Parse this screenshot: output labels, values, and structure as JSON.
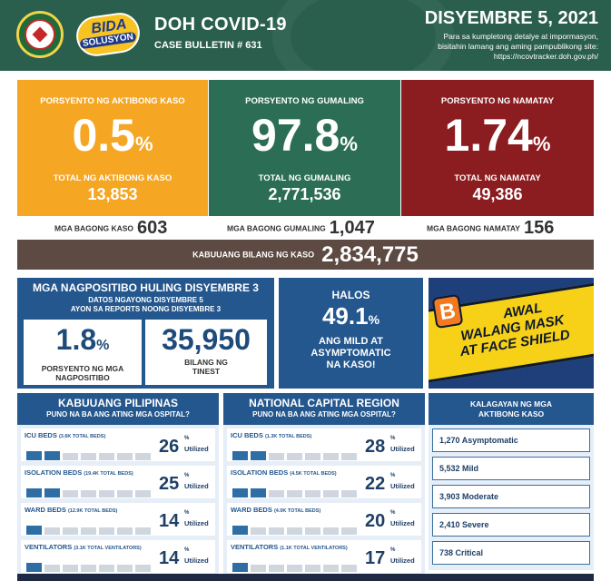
{
  "header": {
    "title": "DOH COVID-19",
    "bulletin": "CASE BULLETIN # 631",
    "date": "DISYEMBRE 5, 2021",
    "note_line1": "Para sa kumpletong detalye at impormasyon,",
    "note_line2": "bisitahin lamang ang aming pampublikong site:",
    "note_line3": "https://ncovtracker.doh.gov.ph/",
    "logo_text_1": "BIDA",
    "logo_text_2": "SOLUSYON"
  },
  "stats": {
    "active": {
      "label": "PORSYENTO NG AKTIBONG KASO",
      "pct": "0.5",
      "pct_unit": "%",
      "total_label": "TOTAL NG AKTIBONG KASO",
      "total": "13,853",
      "color": "#f5a623"
    },
    "recovered": {
      "label": "PORSYENTO NG GUMALING",
      "pct": "97.8",
      "pct_unit": "%",
      "total_label": "TOTAL NG GUMALING",
      "total": "2,771,536",
      "color": "#2b6e55"
    },
    "deaths": {
      "label": "PORSYENTO NG NAMATAY",
      "pct": "1.74",
      "pct_unit": "%",
      "total_label": "TOTAL NG NAMATAY",
      "total": "49,386",
      "color": "#8b1c1f"
    }
  },
  "new_counts": {
    "cases": {
      "label": "MGA BAGONG KASO",
      "value": "603"
    },
    "recovered": {
      "label": "MGA BAGONG GUMALING",
      "value": "1,047"
    },
    "deaths": {
      "label": "MGA BAGONG NAMATAY",
      "value": "156"
    }
  },
  "total_cases": {
    "label": "KABUUANG BILANG NG KASO",
    "value": "2,834,775"
  },
  "positivity": {
    "title": "MGA NAGPOSITIBO HULING DISYEMBRE 3",
    "sub1": "DATOS NGAYONG DISYEMBRE 5",
    "sub2": "AYON SA REPORTS NOONG DISYEMBRE 3",
    "rate": "1.8",
    "rate_unit": "%",
    "rate_label1": "PORSYENTO NG MGA",
    "rate_label2": "NAGPOSITIBO",
    "tested": "35,950",
    "tested_label1": "BILANG NG",
    "tested_label2": "TINEST"
  },
  "mild": {
    "line1": "HALOS",
    "value": "49.1",
    "unit": "%",
    "line2": "ANG MILD AT",
    "line3": "ASYMPTOMATIC",
    "line4": "NA KASO!"
  },
  "mask_banner": {
    "letter": "B",
    "line1": "AWAL",
    "line2": "WALANG MASK",
    "line3": "AT FACE SHIELD"
  },
  "hospitals": {
    "ph": {
      "title": "KABUUANG PILIPINAS",
      "subtitle": "PUNO NA BA ANG ATING MGA OSPITAL?",
      "rows": [
        {
          "label": "ICU BEDS",
          "detail": "(3.6K TOTAL BEDS)",
          "value": "26",
          "utilized": 0.26
        },
        {
          "label": "ISOLATION BEDS",
          "detail": "(19.4K TOTAL BEDS)",
          "value": "25",
          "utilized": 0.25
        },
        {
          "label": "WARD BEDS",
          "detail": "(12.9K TOTAL BEDS)",
          "value": "14",
          "utilized": 0.14
        },
        {
          "label": "VENTILATORS",
          "detail": "(3.1K TOTAL VENTILATORS)",
          "value": "14",
          "utilized": 0.14
        }
      ]
    },
    "ncr": {
      "title": "NATIONAL CAPITAL REGION",
      "subtitle": "PUNO NA BA ANG ATING MGA OSPITAL?",
      "rows": [
        {
          "label": "ICU BEDS",
          "detail": "(1.3K TOTAL BEDS)",
          "value": "28",
          "utilized": 0.28
        },
        {
          "label": "ISOLATION BEDS",
          "detail": "(4.5K TOTAL BEDS)",
          "value": "22",
          "utilized": 0.22
        },
        {
          "label": "WARD BEDS",
          "detail": "(4.0K TOTAL BEDS)",
          "value": "20",
          "utilized": 0.2
        },
        {
          "label": "VENTILATORS",
          "detail": "(1.1K TOTAL VENTILATORS)",
          "value": "17",
          "utilized": 0.17
        }
      ]
    },
    "pct_sign": "%",
    "utilized_label": "Utilized"
  },
  "active_status": {
    "title1": "KALAGAYAN NG MGA",
    "title2": "AKTIBONG KASO",
    "items": [
      "1,270 Asymptomatic",
      "5,532 Mild",
      "3,903 Moderate",
      "2,410 Severe",
      "738 Critical"
    ]
  }
}
